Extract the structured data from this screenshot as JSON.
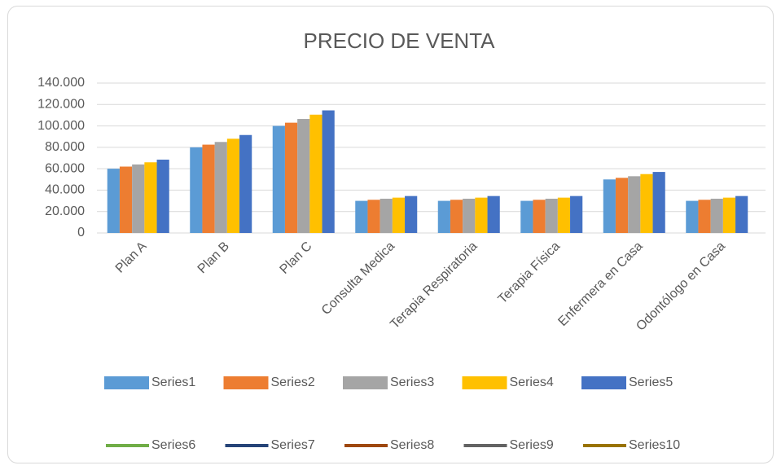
{
  "chart_data": {
    "type": "bar",
    "title": "PRECIO DE VENTA",
    "categories": [
      "Plan A",
      "Plan B",
      "Plan C",
      "Consulta Medica",
      "Terapia Respiratoria",
      "Terapia Física",
      "Enfermera en Casa",
      "Odontólogo en Casa"
    ],
    "series": [
      {
        "name": "Series1",
        "color": "#5b9bd5",
        "values": [
          60000,
          80000,
          100000,
          30000,
          30000,
          30000,
          50000,
          30000
        ]
      },
      {
        "name": "Series2",
        "color": "#ed7d31",
        "values": [
          62000,
          82500,
          103000,
          31000,
          31000,
          31000,
          51500,
          31000
        ]
      },
      {
        "name": "Series3",
        "color": "#a5a5a5",
        "values": [
          64000,
          85000,
          106500,
          32000,
          32000,
          32000,
          53000,
          32000
        ]
      },
      {
        "name": "Series4",
        "color": "#ffc000",
        "values": [
          66000,
          88000,
          110500,
          33000,
          33000,
          33000,
          55000,
          33000
        ]
      },
      {
        "name": "Series5",
        "color": "#4472c4",
        "values": [
          68500,
          91500,
          114500,
          34500,
          34500,
          34500,
          57000,
          34500
        ]
      },
      {
        "name": "Series6",
        "color": "#70ad47",
        "type": "line",
        "values": [
          null,
          null,
          null,
          null,
          null,
          null,
          null,
          null
        ]
      },
      {
        "name": "Series7",
        "color": "#264478",
        "type": "line",
        "values": [
          null,
          null,
          null,
          null,
          null,
          null,
          null,
          null
        ]
      },
      {
        "name": "Series8",
        "color": "#9e480e",
        "type": "line",
        "values": [
          null,
          null,
          null,
          null,
          null,
          null,
          null,
          null
        ]
      },
      {
        "name": "Series9",
        "color": "#636363",
        "type": "line",
        "values": [
          null,
          null,
          null,
          null,
          null,
          null,
          null,
          null
        ]
      },
      {
        "name": "Series10",
        "color": "#997300",
        "type": "line",
        "values": [
          null,
          null,
          null,
          null,
          null,
          null,
          null,
          null
        ]
      }
    ],
    "ylim": [
      0,
      140000
    ],
    "yticks": [
      0,
      {
        "value": 20000,
        "label": "20.000"
      },
      {
        "value": 40000,
        "label": "40.000"
      },
      {
        "value": 60000,
        "label": "60.000"
      },
      {
        "value": 80000,
        "label": "80.000"
      },
      {
        "value": 100000,
        "label": "100.000"
      },
      {
        "value": 120000,
        "label": "120.000"
      },
      {
        "value": 140000,
        "label": "140.000"
      }
    ],
    "grid": true,
    "legend": "bottom"
  }
}
